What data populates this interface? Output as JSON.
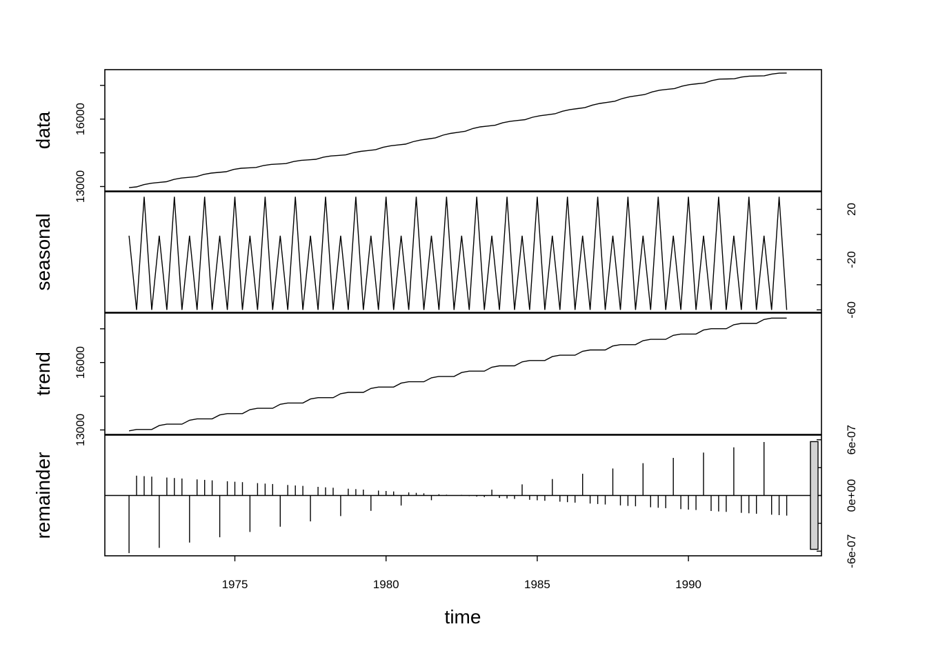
{
  "chart_data": {
    "type": "line",
    "xlabel": "time",
    "x_ticks": [
      1975,
      1980,
      1985,
      1990
    ],
    "xlim": [
      1970.7,
      1994.4
    ],
    "panels": [
      {
        "name": "data",
        "ylim": [
          12800,
          18200
        ],
        "tick_values": [
          13000,
          14500,
          16000,
          17500
        ],
        "tick_labels": [
          "13000",
          "16000"
        ],
        "tick_side": "left",
        "labeled_ticks": [
          13000,
          16000
        ],
        "x": [
          1971.5,
          1973,
          1975,
          1977,
          1979,
          1981,
          1983,
          1985,
          1987,
          1989,
          1991,
          1993.25
        ],
        "y": [
          12950,
          13300,
          13750,
          14100,
          14500,
          15000,
          15600,
          16100,
          16650,
          17250,
          17750,
          18050
        ]
      },
      {
        "name": "seasonal",
        "ylim": [
          -62,
          34
        ],
        "tick_values": [
          -60,
          -40,
          -20,
          0,
          20
        ],
        "tick_labels": [
          "-60",
          "-20",
          "20"
        ],
        "tick_side": "right",
        "labeled_ticks": [
          -60,
          -20,
          20
        ],
        "pattern": [
          -1,
          -60,
          30,
          -60
        ],
        "period_years": 1,
        "start": 1971.5,
        "end": 1993.25
      },
      {
        "name": "trend",
        "ylim": [
          12800,
          18200
        ],
        "tick_values": [
          13000,
          14500,
          16000,
          17500
        ],
        "tick_labels": [
          "13000",
          "16000"
        ],
        "tick_side": "left",
        "labeled_ticks": [
          13000,
          16000
        ],
        "start_value": 12960,
        "annual_step": 236,
        "start": 1971.5,
        "end": 1993.25
      },
      {
        "name": "remainder",
        "ylim": [
          -6.5e-07,
          6.5e-07
        ],
        "tick_values": [
          -6e-07,
          -3e-07,
          0,
          3e-07,
          6e-07
        ],
        "tick_labels": [
          "-6e-07",
          "0e+00",
          "6e-07"
        ],
        "tick_side": "right",
        "labeled_ticks": [
          -6e-07,
          0,
          6e-07
        ],
        "start": 1971.5,
        "end": 1993.25,
        "baseline": 0
      }
    ]
  }
}
